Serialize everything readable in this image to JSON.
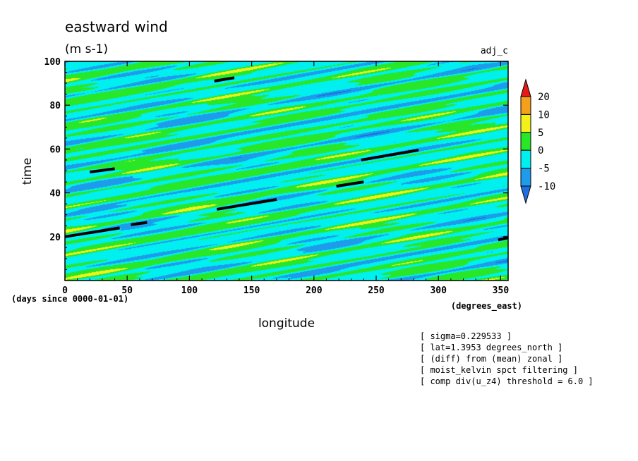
{
  "chart_data": {
    "type": "heatmap",
    "title": "eastward wind",
    "subtitle": "(m s-1)",
    "label_top_right": "adj_c",
    "xlabel": "longitude",
    "xunits": "(degrees_east)",
    "ylabel": "time",
    "yunits": "(days since 0000-01-01)",
    "xlim": [
      0,
      356
    ],
    "ylim": [
      0,
      100
    ],
    "xticks": [
      0,
      50,
      100,
      150,
      200,
      250,
      300,
      350
    ],
    "yticks": [
      20,
      40,
      60,
      80,
      100
    ],
    "colorbar": {
      "levels": [
        -10,
        -5,
        0,
        5,
        10,
        20
      ],
      "colors": [
        "#1f6fe0",
        "#1e9bea",
        "#00f0f0",
        "#28e628",
        "#f2f21a",
        "#f5a01a",
        "#e61919"
      ],
      "extend": "both"
    },
    "overlay_segments": [
      {
        "x": [
          0,
          44
        ],
        "y": [
          20,
          24
        ]
      },
      {
        "x": [
          20,
          40
        ],
        "y": [
          49.5,
          51
        ]
      },
      {
        "x": [
          53,
          66
        ],
        "y": [
          25.5,
          26.5
        ]
      },
      {
        "x": [
          120,
          136
        ],
        "y": [
          91,
          92.5
        ]
      },
      {
        "x": [
          122,
          170
        ],
        "y": [
          32.5,
          37
        ]
      },
      {
        "x": [
          218,
          240
        ],
        "y": [
          43,
          45
        ]
      },
      {
        "x": [
          238,
          284
        ],
        "y": [
          55,
          59.5
        ]
      },
      {
        "x": [
          348,
          356
        ],
        "y": [
          18.5,
          19.5
        ]
      }
    ],
    "annotations": [
      "[ sigma=0.229533 ]",
      "[ lat=1.3953 degrees_north ]",
      "[ (diff) from (mean) zonal ]",
      "[ moist_kelvin spct filtering ]",
      "[ comp div(u_z4) threshold = 6.0 ]"
    ]
  }
}
